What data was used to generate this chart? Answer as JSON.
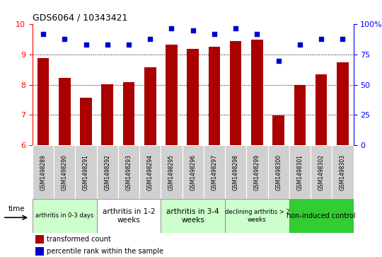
{
  "title": "GDS6064 / 10343421",
  "samples": [
    "GSM1498289",
    "GSM1498290",
    "GSM1498291",
    "GSM1498292",
    "GSM1498293",
    "GSM1498294",
    "GSM1498295",
    "GSM1498296",
    "GSM1498297",
    "GSM1498298",
    "GSM1498299",
    "GSM1498300",
    "GSM1498301",
    "GSM1498302",
    "GSM1498303"
  ],
  "bar_values": [
    8.88,
    8.22,
    7.58,
    8.02,
    8.1,
    8.57,
    9.32,
    9.2,
    9.25,
    9.44,
    9.5,
    6.98,
    8.0,
    8.35,
    8.74
  ],
  "dot_values": [
    92,
    88,
    83,
    83,
    83,
    88,
    97,
    95,
    92,
    97,
    92,
    70,
    83,
    88,
    88
  ],
  "bar_color": "#aa0000",
  "dot_color": "#0000cc",
  "ylim_left": [
    6,
    10
  ],
  "ylim_right": [
    0,
    100
  ],
  "yticks_left": [
    6,
    7,
    8,
    9,
    10
  ],
  "yticks_right": [
    0,
    25,
    50,
    75,
    100
  ],
  "ytick_labels_right": [
    "0",
    "25",
    "50",
    "75",
    "100%"
  ],
  "groups": [
    {
      "label": "arthritis in 0-3 days",
      "start": 0,
      "end": 3,
      "color": "#ccffcc",
      "fontsize": 6
    },
    {
      "label": "arthritis in 1-2\nweeks",
      "start": 3,
      "end": 6,
      "color": "#ffffff",
      "fontsize": 7.5
    },
    {
      "label": "arthritis in 3-4\nweeks",
      "start": 6,
      "end": 9,
      "color": "#ccffcc",
      "fontsize": 7.5
    },
    {
      "label": "declining arthritis > 2\nweeks",
      "start": 9,
      "end": 12,
      "color": "#ccffcc",
      "fontsize": 6
    },
    {
      "label": "non-induced control",
      "start": 12,
      "end": 15,
      "color": "#33cc33",
      "fontsize": 7
    }
  ],
  "legend_red_label": "transformed count",
  "legend_blue_label": "percentile rank within the sample",
  "time_label": "time"
}
